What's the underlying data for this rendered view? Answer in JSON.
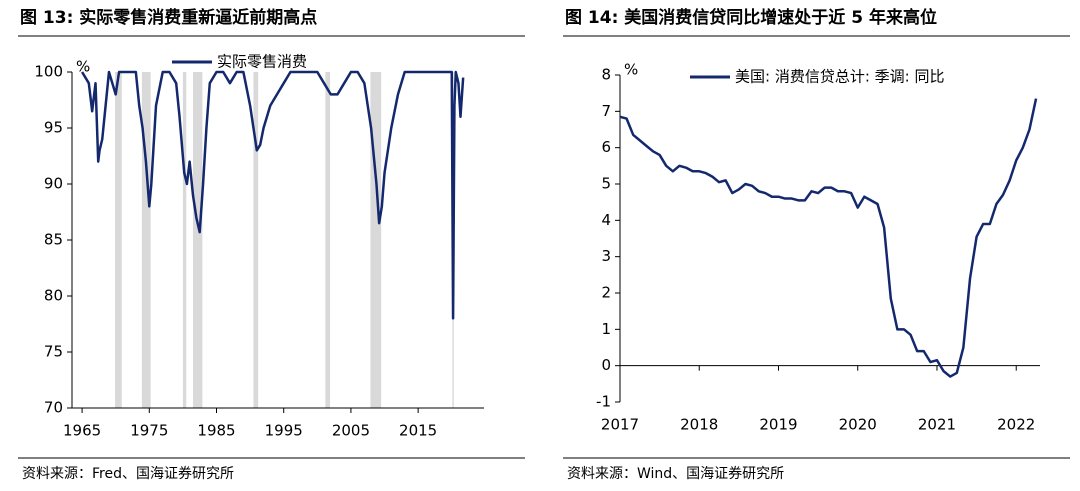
{
  "chart_data": [
    {
      "type": "line",
      "title": "图 13:  实际零售消费重新逼近前期高点",
      "y_unit": "%",
      "source": "资料来源：Fred、国海证券研究所",
      "xlim": [
        1963.5,
        2024.8
      ],
      "xticks": [
        1965,
        1975,
        1985,
        1995,
        2005,
        2015
      ],
      "ylim": [
        70,
        100
      ],
      "yticks": [
        70,
        75,
        80,
        85,
        90,
        95,
        100
      ],
      "shade_color": "#d9d9d9",
      "shaded_ranges": [
        [
          1969.9,
          1970.9
        ],
        [
          1973.9,
          1975.2
        ],
        [
          1980.0,
          1980.5
        ],
        [
          1981.5,
          1982.9
        ],
        [
          1990.5,
          1991.2
        ],
        [
          2001.2,
          2001.9
        ],
        [
          2007.9,
          2009.5
        ],
        [
          2020.1,
          2020.3
        ]
      ],
      "x": [
        1965,
        1966,
        1966.5,
        1967,
        1967.4,
        1967.6,
        1968,
        1968.5,
        1969,
        1970,
        1970.5,
        1971,
        1972,
        1973,
        1973.5,
        1974,
        1974.5,
        1975,
        1975.3,
        1975.8,
        1976,
        1977,
        1978,
        1979,
        1979.5,
        1980.2,
        1980.6,
        1981,
        1981.5,
        1982,
        1982.5,
        1983,
        1983.5,
        1984,
        1985,
        1986,
        1987,
        1988,
        1989,
        1990,
        1990.5,
        1991,
        1991.5,
        1992,
        1993,
        1994,
        1995,
        1996,
        1997,
        1998,
        1999,
        2000,
        2001,
        2002,
        2003,
        2004,
        2005,
        2006,
        2007,
        2008,
        2008.8,
        2009.2,
        2009.6,
        2010,
        2011,
        2012,
        2013,
        2014,
        2015,
        2016,
        2017,
        2018,
        2019,
        2020,
        2020.2,
        2020.4,
        2020.6,
        2021,
        2021.3,
        2021.7
      ],
      "series": [
        {
          "name": "实际零售消费",
          "color": "#14286e",
          "values": [
            100,
            99,
            96.5,
            99,
            92,
            93,
            94,
            97,
            100,
            98,
            100,
            100,
            100,
            100,
            97,
            95,
            92,
            88,
            90,
            95,
            97,
            100,
            100,
            99,
            96,
            91,
            90,
            92,
            89,
            87,
            85.7,
            90,
            95,
            99,
            100,
            100,
            99,
            100,
            100,
            97,
            95,
            93,
            93.5,
            95,
            97,
            98,
            99,
            100,
            100,
            100,
            100,
            100,
            99,
            98,
            98,
            99,
            100,
            100,
            99,
            95,
            90,
            86.5,
            88,
            91,
            95,
            98,
            100,
            100,
            100,
            100,
            100,
            100,
            100,
            100,
            78,
            97,
            100,
            99,
            96,
            99.5
          ]
        }
      ]
    },
    {
      "type": "line",
      "title": "图 14:  美国消费信贷同比增速处于近 5 年来高位",
      "y_unit": "%",
      "source": "资料来源：Wind、国海证券研究所",
      "xlim": [
        2017,
        2022.3
      ],
      "xticks": [
        2017,
        2018,
        2019,
        2020,
        2021,
        2022
      ],
      "ylim": [
        -1,
        8
      ],
      "yticks": [
        -1,
        0,
        1,
        2,
        3,
        4,
        5,
        6,
        7,
        8
      ],
      "x": [
        2017,
        2017.083,
        2017.167,
        2017.25,
        2017.333,
        2017.417,
        2017.5,
        2017.583,
        2017.667,
        2017.75,
        2017.833,
        2017.917,
        2018,
        2018.083,
        2018.167,
        2018.25,
        2018.333,
        2018.417,
        2018.5,
        2018.583,
        2018.667,
        2018.75,
        2018.833,
        2018.917,
        2019,
        2019.083,
        2019.167,
        2019.25,
        2019.333,
        2019.417,
        2019.5,
        2019.583,
        2019.667,
        2019.75,
        2019.833,
        2019.917,
        2020,
        2020.083,
        2020.167,
        2020.25,
        2020.333,
        2020.417,
        2020.5,
        2020.583,
        2020.667,
        2020.75,
        2020.833,
        2020.917,
        2021,
        2021.083,
        2021.167,
        2021.25,
        2021.333,
        2021.417,
        2021.5,
        2021.583,
        2021.667,
        2021.75,
        2021.833,
        2021.917,
        2022,
        2022.083,
        2022.167,
        2022.25
      ],
      "series": [
        {
          "name": "美国: 消费信贷总计: 季调: 同比",
          "color": "#14286e",
          "values": [
            6.85,
            6.8,
            6.35,
            6.2,
            6.05,
            5.9,
            5.8,
            5.5,
            5.35,
            5.5,
            5.45,
            5.35,
            5.35,
            5.3,
            5.2,
            5.05,
            5.1,
            4.75,
            4.85,
            5.0,
            4.95,
            4.8,
            4.75,
            4.65,
            4.65,
            4.6,
            4.6,
            4.55,
            4.55,
            4.8,
            4.75,
            4.9,
            4.9,
            4.8,
            4.8,
            4.75,
            4.35,
            4.65,
            4.55,
            4.45,
            3.8,
            1.85,
            1.0,
            1.0,
            0.85,
            0.4,
            0.4,
            0.1,
            0.15,
            -0.15,
            -0.3,
            -0.2,
            0.5,
            2.4,
            3.55,
            3.9,
            3.9,
            4.45,
            4.7,
            5.1,
            5.65,
            6.0,
            6.5,
            7.35
          ]
        }
      ]
    }
  ]
}
